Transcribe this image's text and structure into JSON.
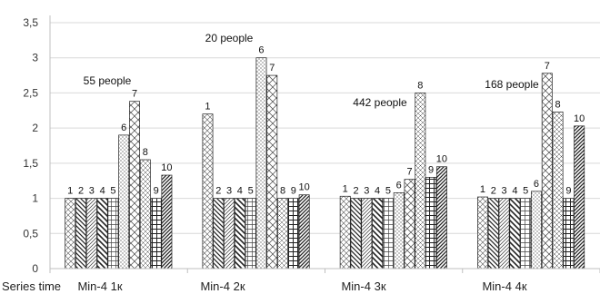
{
  "chart_data": {
    "type": "bar",
    "title": "",
    "xlabel": "Series time",
    "ylabel": "",
    "ylim": [
      0,
      3.5
    ],
    "yticks": [
      "0",
      "0,5",
      "1",
      "1,5",
      "2",
      "2,5",
      "3",
      "3,5"
    ],
    "grid": true,
    "legend": "none",
    "categories": [
      "Min-4 1к",
      "Min-4 2к",
      "Min-4 3к",
      "Min-4 4к"
    ],
    "series": [
      {
        "label": "1",
        "values": [
          1.0,
          2.2,
          1.03,
          1.02
        ]
      },
      {
        "label": "2",
        "values": [
          1.0,
          1.0,
          1.0,
          1.0
        ]
      },
      {
        "label": "3",
        "values": [
          1.0,
          1.0,
          1.0,
          1.0
        ]
      },
      {
        "label": "4",
        "values": [
          1.0,
          1.0,
          1.0,
          1.0
        ]
      },
      {
        "label": "5",
        "values": [
          1.0,
          1.0,
          1.0,
          1.0
        ]
      },
      {
        "label": "6",
        "values": [
          1.9,
          3.0,
          1.08,
          1.1
        ]
      },
      {
        "label": "7",
        "values": [
          2.38,
          2.75,
          1.27,
          2.78
        ]
      },
      {
        "label": "8",
        "values": [
          1.55,
          1.0,
          2.5,
          2.23
        ]
      },
      {
        "label": "9",
        "values": [
          1.0,
          1.0,
          1.3,
          1.0
        ]
      },
      {
        "label": "10",
        "values": [
          1.33,
          1.05,
          1.45,
          2.03
        ]
      }
    ],
    "annotations": [
      "55 people",
      "20 people",
      "442 people",
      "168 people"
    ]
  }
}
